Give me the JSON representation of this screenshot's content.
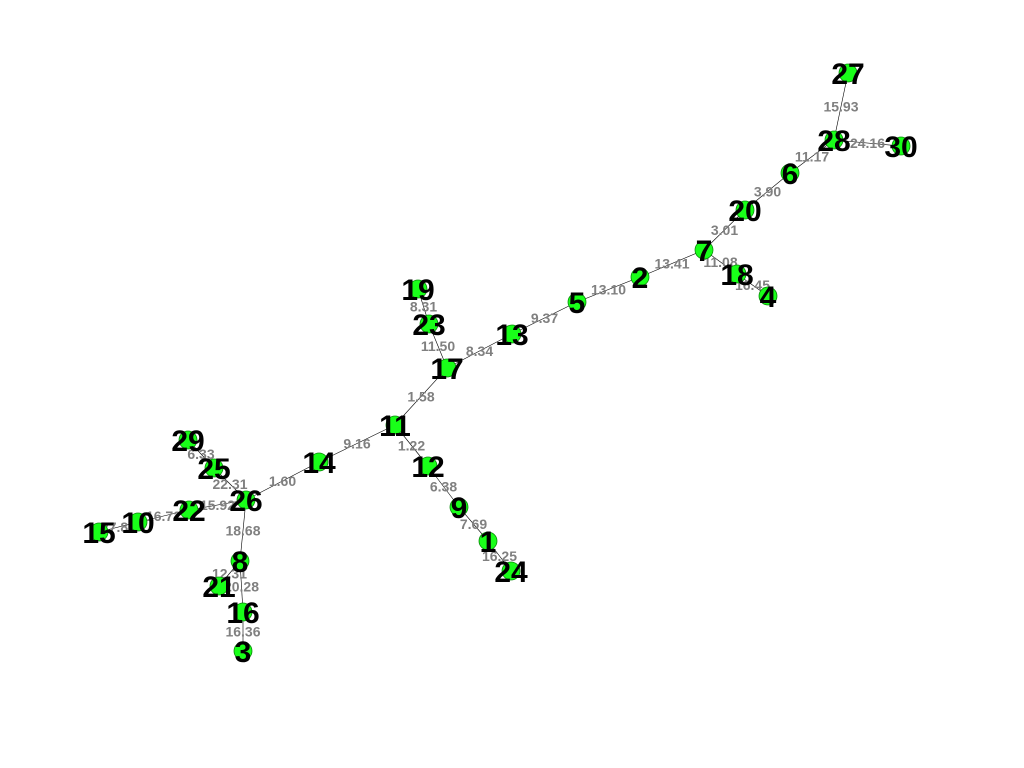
{
  "colors": {
    "node_fill": "#19ff19",
    "edge": "#000000",
    "edge_label": "#808080",
    "node_label": "#000000"
  },
  "nodes": [
    "1",
    "2",
    "3",
    "4",
    "5",
    "6",
    "7",
    "8",
    "9",
    "10",
    "11",
    "12",
    "13",
    "14",
    "15",
    "16",
    "17",
    "18",
    "19",
    "20",
    "21",
    "22",
    "23",
    "24",
    "25",
    "26",
    "27",
    "28",
    "29",
    "30"
  ],
  "edges": [
    {
      "source": "27",
      "target": "28",
      "weight": "15.93"
    },
    {
      "source": "28",
      "target": "30",
      "weight": "24.16"
    },
    {
      "source": "28",
      "target": "6",
      "weight": "11.17"
    },
    {
      "source": "6",
      "target": "20",
      "weight": "3.90"
    },
    {
      "source": "20",
      "target": "7",
      "weight": "3.01"
    },
    {
      "source": "7",
      "target": "2",
      "weight": "13.41"
    },
    {
      "source": "7",
      "target": "18",
      "weight": "11.08"
    },
    {
      "source": "18",
      "target": "4",
      "weight": "16.45"
    },
    {
      "source": "2",
      "target": "5",
      "weight": "13.10"
    },
    {
      "source": "5",
      "target": "13",
      "weight": "9.37"
    },
    {
      "source": "13",
      "target": "17",
      "weight": "8.34"
    },
    {
      "source": "19",
      "target": "23",
      "weight": "8.31"
    },
    {
      "source": "23",
      "target": "17",
      "weight": "11.50"
    },
    {
      "source": "17",
      "target": "11",
      "weight": "1.58"
    },
    {
      "source": "11",
      "target": "14",
      "weight": "9.16"
    },
    {
      "source": "11",
      "target": "12",
      "weight": "1.22"
    },
    {
      "source": "12",
      "target": "9",
      "weight": "6.38"
    },
    {
      "source": "9",
      "target": "1",
      "weight": "7.69"
    },
    {
      "source": "1",
      "target": "24",
      "weight": "16.25"
    },
    {
      "source": "14",
      "target": "26",
      "weight": "1.60"
    },
    {
      "source": "29",
      "target": "25",
      "weight": "6.33"
    },
    {
      "source": "25",
      "target": "26",
      "weight": "22.31"
    },
    {
      "source": "26",
      "target": "22",
      "weight": "15.92"
    },
    {
      "source": "22",
      "target": "10",
      "weight": "16.72"
    },
    {
      "source": "10",
      "target": "15",
      "weight": "27.84"
    },
    {
      "source": "26",
      "target": "8",
      "weight": "18.68"
    },
    {
      "source": "8",
      "target": "21",
      "weight": "12.31"
    },
    {
      "source": "8",
      "target": "16",
      "weight": "20.28"
    },
    {
      "source": "16",
      "target": "3",
      "weight": "16.36"
    }
  ]
}
